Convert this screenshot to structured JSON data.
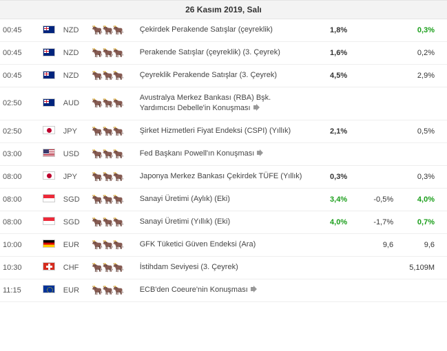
{
  "header": "26 Kasım 2019, Salı",
  "colors": {
    "green": "#1a9e1a",
    "text": "#333333",
    "muted": "#555555",
    "border": "#eeeeee",
    "header_bg": "#f3f3f3"
  },
  "rows": [
    {
      "time": "00:45",
      "flag": "nzd",
      "code": "NZD",
      "imp": 2,
      "event": "Çekirdek Perakende Satışlar (çeyreklik)",
      "speech": false,
      "v1": "1,8%",
      "v1_style": "bold",
      "v2": "",
      "v3": "0,3%",
      "v3_style": "green"
    },
    {
      "time": "00:45",
      "flag": "nzd",
      "code": "NZD",
      "imp": 2,
      "event": "Perakende Satışlar (çeyreklik) (3. Çeyrek)",
      "speech": false,
      "v1": "1,6%",
      "v1_style": "bold",
      "v2": "",
      "v3": "0,2%",
      "v3_style": "normal"
    },
    {
      "time": "00:45",
      "flag": "nzd",
      "code": "NZD",
      "imp": 2,
      "event": "Çeyreklik Perakende Satışlar (3. Çeyrek)",
      "speech": false,
      "v1": "4,5%",
      "v1_style": "bold",
      "v2": "",
      "v3": "2,9%",
      "v3_style": "normal"
    },
    {
      "time": "02:50",
      "flag": "aud",
      "code": "AUD",
      "imp": 2,
      "event": "Avustralya Merkez Bankası (RBA) Bşk. Yardımcısı Debelle'in Konuşması",
      "speech": true,
      "v1": "",
      "v1_style": "",
      "v2": "",
      "v3": "",
      "v3_style": ""
    },
    {
      "time": "02:50",
      "flag": "jpy",
      "code": "JPY",
      "imp": 1,
      "event": "Şirket Hizmetleri Fiyat Endeksi (CSPI) (Yıllık)",
      "speech": false,
      "v1": "2,1%",
      "v1_style": "bold",
      "v2": "",
      "v3": "0,5%",
      "v3_style": "normal"
    },
    {
      "time": "03:00",
      "flag": "usd",
      "code": "USD",
      "imp": 3,
      "event": "Fed Başkanı Powell'ın Konuşması",
      "speech": true,
      "v1": "",
      "v1_style": "",
      "v2": "",
      "v3": "",
      "v3_style": ""
    },
    {
      "time": "08:00",
      "flag": "jpy",
      "code": "JPY",
      "imp": 1,
      "event": "Japonya Merkez Bankası Çekirdek TÜFE (Yıllık)",
      "speech": false,
      "v1": "0,3%",
      "v1_style": "bold",
      "v2": "",
      "v3": "0,3%",
      "v3_style": "normal"
    },
    {
      "time": "08:00",
      "flag": "sgd",
      "code": "SGD",
      "imp": 1,
      "event": "Sanayi Üretimi (Aylık) (Eki)",
      "speech": false,
      "v1": "3,4%",
      "v1_style": "green",
      "v2": "-0,5%",
      "v3": "4,0%",
      "v3_style": "green"
    },
    {
      "time": "08:00",
      "flag": "sgd",
      "code": "SGD",
      "imp": 1,
      "event": "Sanayi Üretimi (Yıllık) (Eki)",
      "speech": false,
      "v1": "4,0%",
      "v1_style": "green",
      "v2": "-1,7%",
      "v3": "0,7%",
      "v3_style": "green"
    },
    {
      "time": "10:00",
      "flag": "eur-de",
      "code": "EUR",
      "imp": 2,
      "event": "GFK Tüketici Güven Endeksi (Ara)",
      "speech": false,
      "v1": "",
      "v1_style": "",
      "v2": "9,6",
      "v3": "9,6",
      "v3_style": "normal"
    },
    {
      "time": "10:30",
      "flag": "chf",
      "code": "CHF",
      "imp": 1,
      "event": "İstihdam Seviyesi (3. Çeyrek)",
      "speech": false,
      "v1": "",
      "v1_style": "",
      "v2": "",
      "v3": "5,109M",
      "v3_style": "normal"
    },
    {
      "time": "11:15",
      "flag": "eur",
      "code": "EUR",
      "imp": 2,
      "event": "ECB'den Coeure'nin Konuşması",
      "speech": true,
      "v1": "",
      "v1_style": "",
      "v2": "",
      "v3": "",
      "v3_style": ""
    }
  ]
}
